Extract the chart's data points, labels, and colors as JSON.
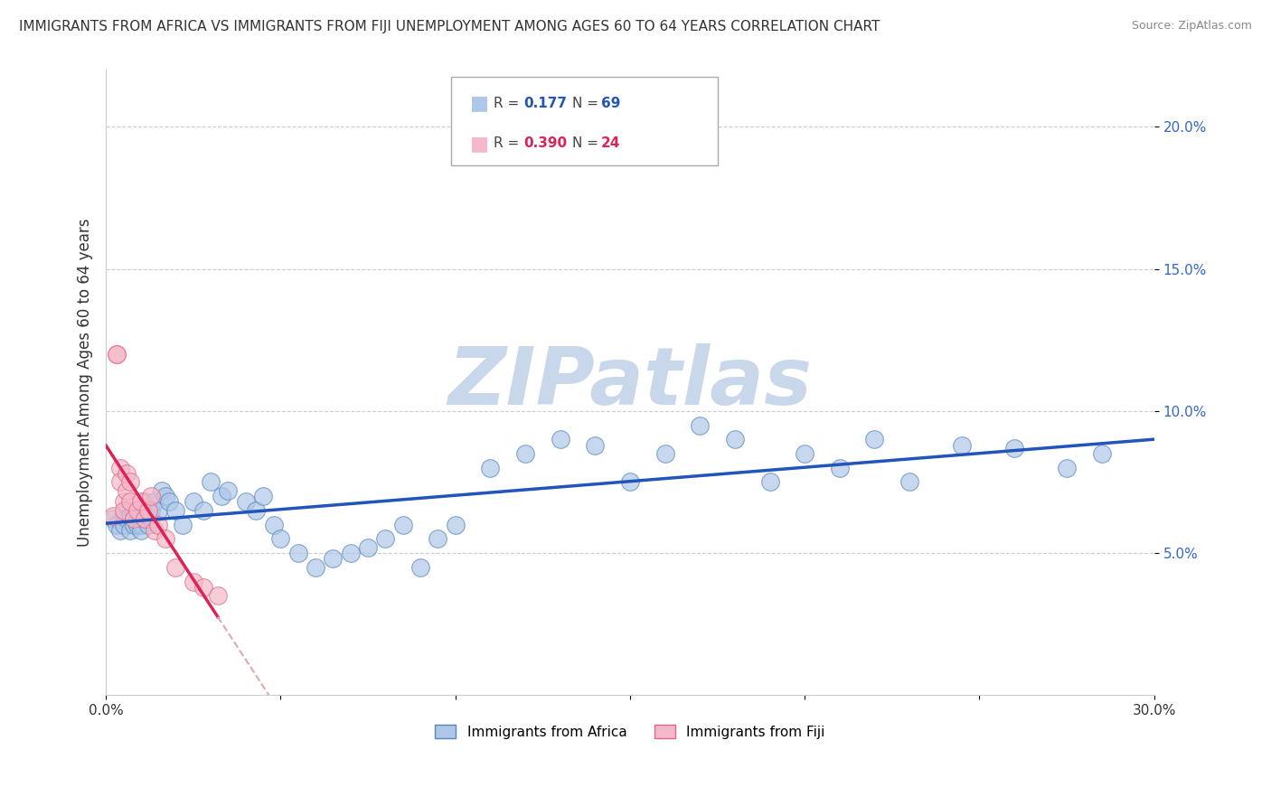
{
  "title": "IMMIGRANTS FROM AFRICA VS IMMIGRANTS FROM FIJI UNEMPLOYMENT AMONG AGES 60 TO 64 YEARS CORRELATION CHART",
  "source": "Source: ZipAtlas.com",
  "ylabel": "Unemployment Among Ages 60 to 64 years",
  "xlim": [
    0.0,
    0.3
  ],
  "ylim": [
    0.0,
    0.22
  ],
  "xticks": [
    0.0,
    0.05,
    0.1,
    0.15,
    0.2,
    0.25,
    0.3
  ],
  "xtick_labels": [
    "0.0%",
    "",
    "",
    "",
    "",
    "",
    "30.0%"
  ],
  "yticks": [
    0.05,
    0.1,
    0.15,
    0.2
  ],
  "ytick_labels": [
    "5.0%",
    "10.0%",
    "15.0%",
    "20.0%"
  ],
  "legend1_label": "Immigrants from Africa",
  "legend2_label": "Immigrants from Fiji",
  "R_africa": 0.177,
  "N_africa": 69,
  "R_fiji": 0.39,
  "N_fiji": 24,
  "color_africa": "#aec6e8",
  "color_fiji": "#f5b8c8",
  "color_africa_edge": "#5588bb",
  "color_fiji_edge": "#dd6688",
  "trendline_africa_color": "#2255bb",
  "trendline_fiji_color": "#dd2255",
  "trendline_fiji_dash_color": "#ddaaaa",
  "watermark_color": "#c8d8ea",
  "background_color": "#ffffff",
  "africa_x": [
    0.002,
    0.003,
    0.004,
    0.005,
    0.005,
    0.006,
    0.006,
    0.007,
    0.007,
    0.008,
    0.008,
    0.008,
    0.009,
    0.009,
    0.009,
    0.01,
    0.01,
    0.01,
    0.011,
    0.011,
    0.011,
    0.012,
    0.012,
    0.013,
    0.013,
    0.014,
    0.015,
    0.016,
    0.017,
    0.018,
    0.02,
    0.022,
    0.025,
    0.028,
    0.03,
    0.033,
    0.035,
    0.04,
    0.043,
    0.045,
    0.048,
    0.05,
    0.055,
    0.06,
    0.065,
    0.07,
    0.075,
    0.08,
    0.085,
    0.09,
    0.095,
    0.1,
    0.11,
    0.12,
    0.13,
    0.14,
    0.15,
    0.16,
    0.17,
    0.18,
    0.19,
    0.2,
    0.21,
    0.22,
    0.23,
    0.245,
    0.26,
    0.275,
    0.285
  ],
  "africa_y": [
    0.062,
    0.06,
    0.058,
    0.063,
    0.06,
    0.062,
    0.065,
    0.058,
    0.063,
    0.062,
    0.06,
    0.065,
    0.062,
    0.06,
    0.065,
    0.063,
    0.06,
    0.058,
    0.065,
    0.062,
    0.068,
    0.063,
    0.06,
    0.062,
    0.065,
    0.068,
    0.065,
    0.072,
    0.07,
    0.068,
    0.065,
    0.06,
    0.068,
    0.065,
    0.075,
    0.07,
    0.072,
    0.068,
    0.065,
    0.07,
    0.06,
    0.055,
    0.05,
    0.045,
    0.048,
    0.05,
    0.052,
    0.055,
    0.06,
    0.045,
    0.055,
    0.06,
    0.08,
    0.085,
    0.09,
    0.088,
    0.075,
    0.085,
    0.095,
    0.09,
    0.075,
    0.085,
    0.08,
    0.09,
    0.075,
    0.088,
    0.087,
    0.08,
    0.085
  ],
  "fiji_x": [
    0.002,
    0.003,
    0.003,
    0.004,
    0.004,
    0.005,
    0.005,
    0.006,
    0.006,
    0.007,
    0.007,
    0.008,
    0.009,
    0.01,
    0.011,
    0.012,
    0.013,
    0.014,
    0.015,
    0.017,
    0.02,
    0.025,
    0.028,
    0.032
  ],
  "fiji_y": [
    0.063,
    0.12,
    0.12,
    0.08,
    0.075,
    0.068,
    0.065,
    0.078,
    0.072,
    0.075,
    0.068,
    0.062,
    0.065,
    0.068,
    0.062,
    0.065,
    0.07,
    0.058,
    0.06,
    0.055,
    0.045,
    0.04,
    0.038,
    0.035
  ]
}
